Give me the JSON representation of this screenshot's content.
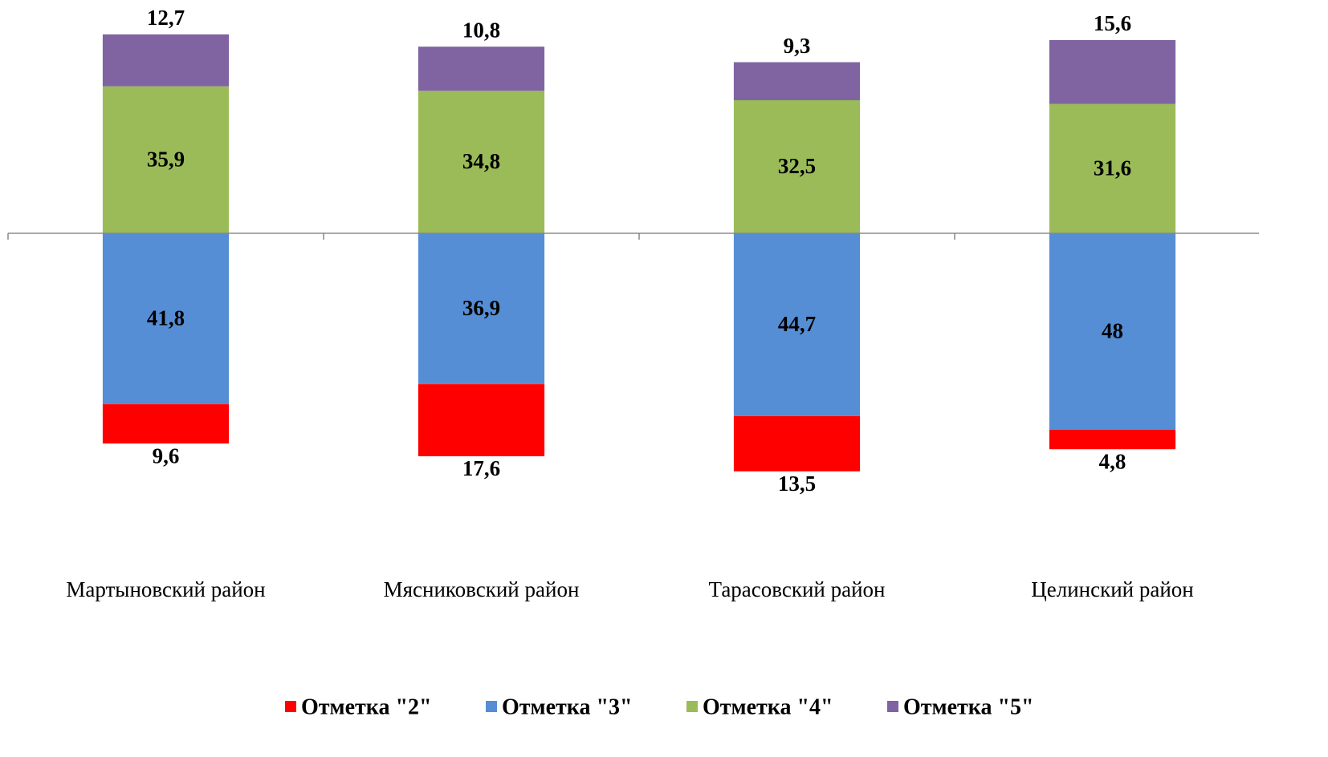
{
  "chart_data": {
    "type": "bar",
    "categories": [
      "Мартыновский  район",
      "Мясниковский  район",
      "Тарасовский  район",
      "Целинский  район"
    ],
    "series": [
      {
        "name": "Отметка \"2\"",
        "color": "#ff0000",
        "values": [
          -9.6,
          -17.6,
          -13.5,
          -4.8
        ],
        "value_labels": [
          "9,6",
          "17,6",
          "13,5",
          "4,8"
        ]
      },
      {
        "name": "Отметка \"3\"",
        "color": "#558ed5",
        "values": [
          -41.8,
          -36.9,
          -44.7,
          -48
        ],
        "value_labels": [
          "41,8",
          "36,9",
          "44,7",
          "48"
        ]
      },
      {
        "name": "Отметка \"4\"",
        "color": "#9bbb59",
        "values": [
          35.9,
          34.8,
          32.5,
          31.6
        ],
        "value_labels": [
          "35,9",
          "34,8",
          "32,5",
          "31,6"
        ]
      },
      {
        "name": "Отметка \"5\"",
        "color": "#8064a2",
        "values": [
          12.7,
          10.8,
          9.3,
          15.6
        ],
        "value_labels": [
          "12,7",
          "10,8",
          "9,3",
          "15,6"
        ]
      }
    ],
    "ylim": [
      -80,
      57
    ],
    "stacked": true
  }
}
